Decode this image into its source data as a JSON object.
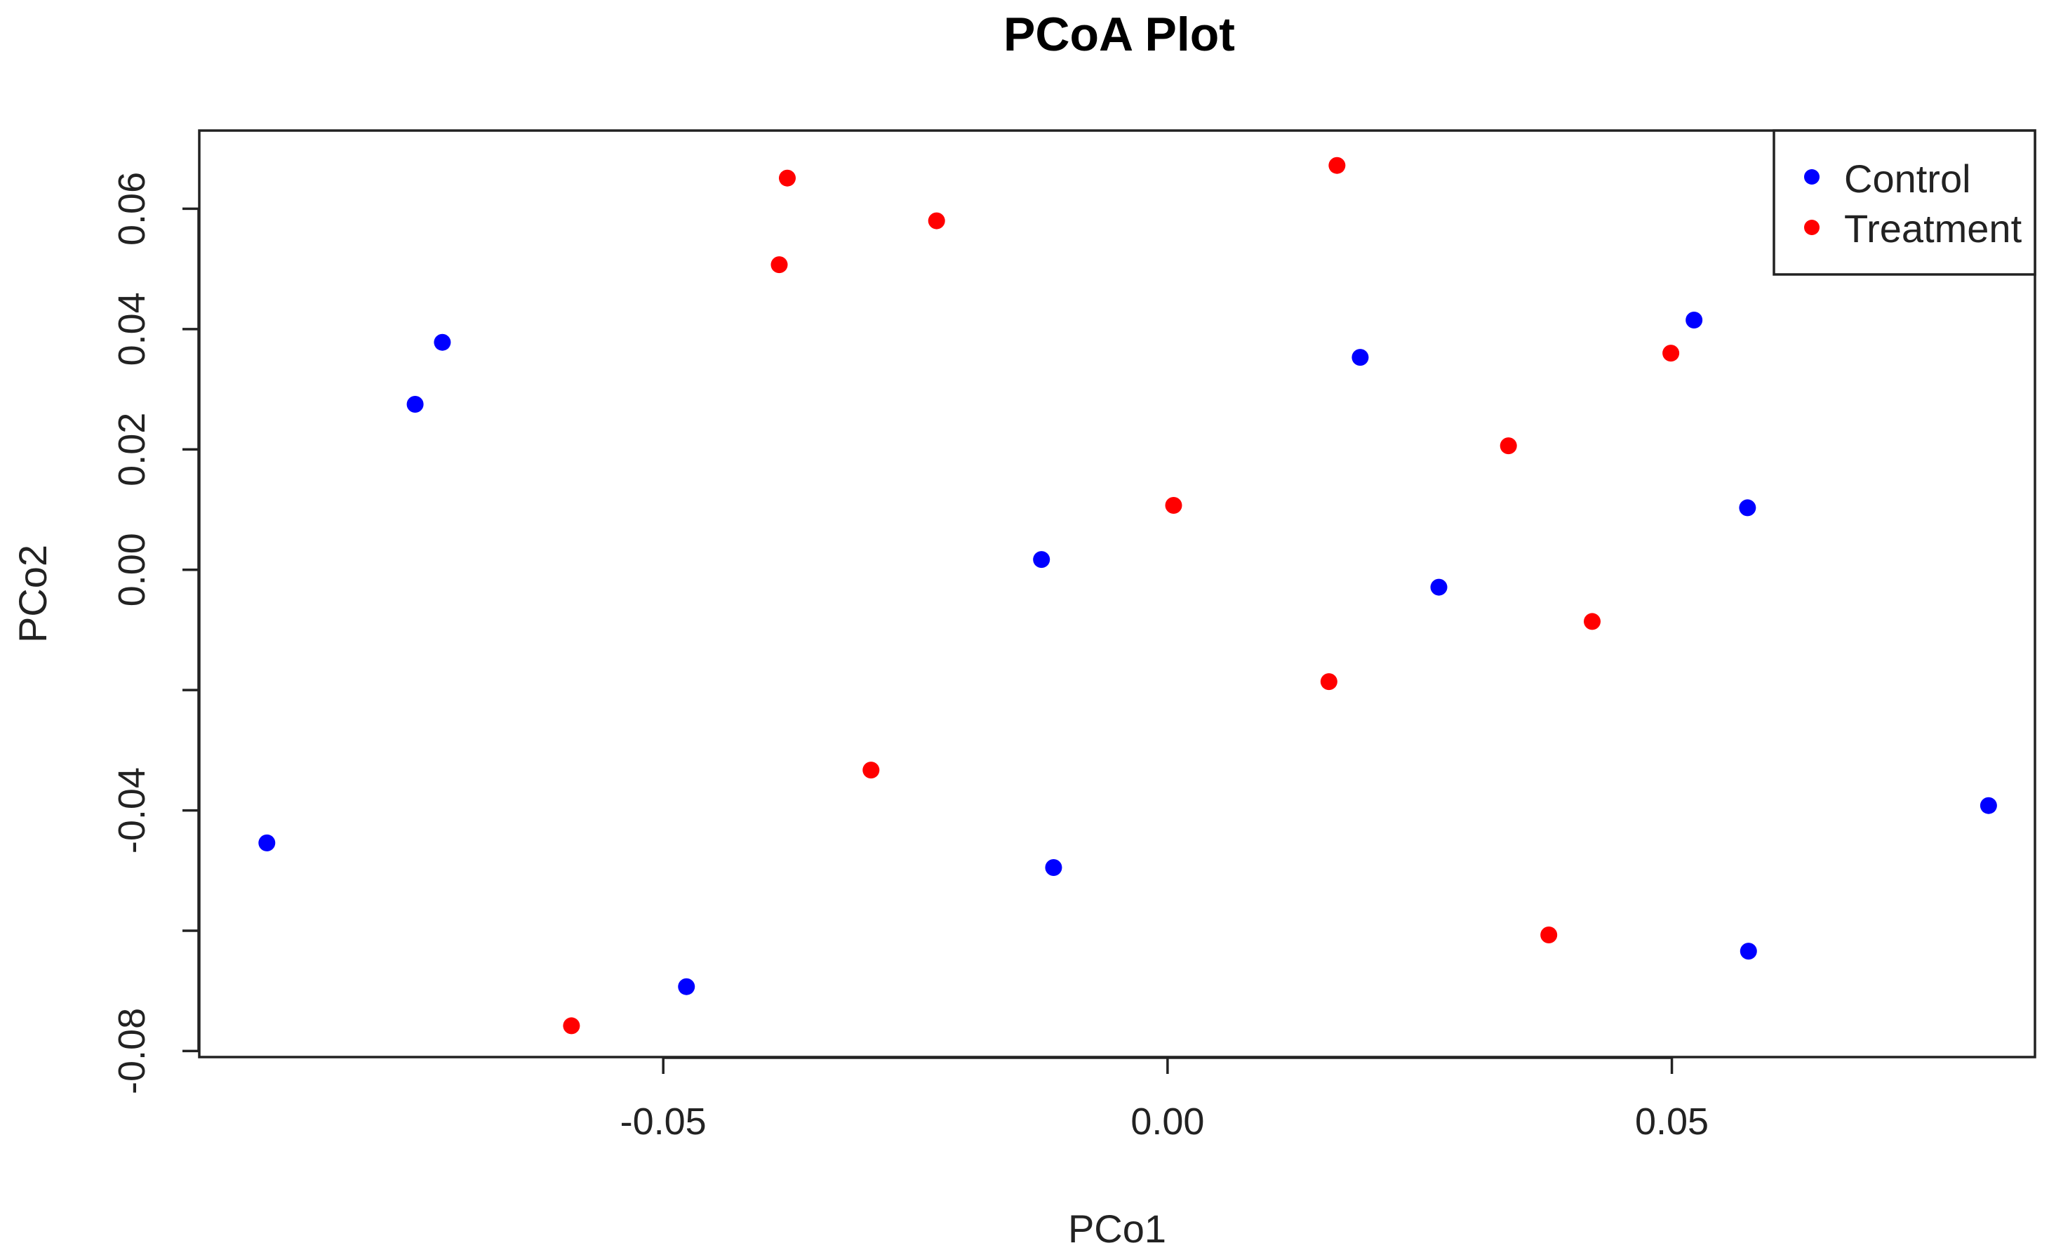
{
  "chart_data": {
    "type": "scatter",
    "title": "PCoA Plot",
    "xlabel": "PCo1",
    "ylabel": "PCo2",
    "xlim": [
      -0.096,
      0.086
    ],
    "ylim": [
      -0.081,
      0.073
    ],
    "xticks": [
      {
        "value": -0.05,
        "label": "-0.05"
      },
      {
        "value": 0.0,
        "label": "0.00"
      },
      {
        "value": 0.05,
        "label": "0.05"
      }
    ],
    "yticks": [
      {
        "value": -0.08,
        "label": "-0.08"
      },
      {
        "value": -0.06,
        "label": ""
      },
      {
        "value": -0.04,
        "label": "-0.04"
      },
      {
        "value": -0.02,
        "label": ""
      },
      {
        "value": 0.0,
        "label": "0.00"
      },
      {
        "value": 0.02,
        "label": "0.02"
      },
      {
        "value": 0.04,
        "label": "0.04"
      },
      {
        "value": 0.06,
        "label": "0.06"
      }
    ],
    "grid": false,
    "legend_position": "top-right",
    "series": [
      {
        "name": "Control",
        "color": "#0000ff",
        "points": [
          {
            "x": -0.0893,
            "y": -0.0454
          },
          {
            "x": -0.0746,
            "y": 0.0275
          },
          {
            "x": -0.0719,
            "y": 0.0378
          },
          {
            "x": -0.0477,
            "y": -0.0693
          },
          {
            "x": -0.0125,
            "y": 0.0017
          },
          {
            "x": -0.0113,
            "y": -0.0495
          },
          {
            "x": 0.0191,
            "y": 0.0353
          },
          {
            "x": 0.0269,
            "y": -0.0029
          },
          {
            "x": 0.0522,
            "y": 0.0415
          },
          {
            "x": 0.0575,
            "y": 0.0103
          },
          {
            "x": 0.0576,
            "y": -0.0634
          },
          {
            "x": 0.0814,
            "y": -0.0392
          }
        ]
      },
      {
        "name": "Treatment",
        "color": "#ff0000",
        "points": [
          {
            "x": -0.0591,
            "y": -0.0758
          },
          {
            "x": -0.0385,
            "y": 0.0507
          },
          {
            "x": -0.0377,
            "y": 0.0651
          },
          {
            "x": -0.0294,
            "y": -0.0333
          },
          {
            "x": -0.0229,
            "y": 0.058
          },
          {
            "x": 0.0006,
            "y": 0.0107
          },
          {
            "x": 0.016,
            "y": -0.0186
          },
          {
            "x": 0.0168,
            "y": 0.0672
          },
          {
            "x": 0.0338,
            "y": 0.0206
          },
          {
            "x": 0.0378,
            "y": -0.0607
          },
          {
            "x": 0.0421,
            "y": -0.0086
          },
          {
            "x": 0.0499,
            "y": 0.036
          }
        ]
      }
    ]
  }
}
